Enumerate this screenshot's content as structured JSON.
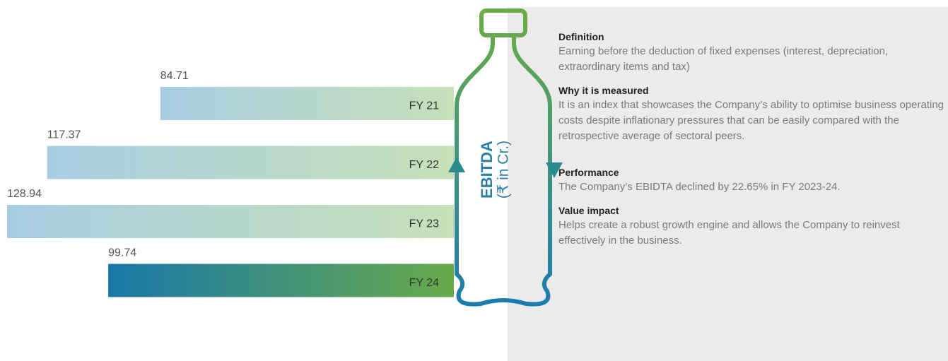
{
  "chart_data": {
    "type": "bar",
    "orientation": "horizontal",
    "title": "EBITDA",
    "subtitle": "(₹ in Cr.)",
    "categories": [
      "FY 21",
      "FY 22",
      "FY 23",
      "FY 24"
    ],
    "values": [
      84.71,
      117.37,
      128.94,
      99.74
    ],
    "bar_colors": [
      [
        "#a8cde2",
        "#c6e0b8"
      ],
      [
        "#a8cde2",
        "#c6e0b8"
      ],
      [
        "#a8cde2",
        "#c6e0b8"
      ],
      [
        "#1878aa",
        "#68aa4a"
      ]
    ]
  },
  "panel": {
    "sections": [
      {
        "heading": "Definition",
        "text": "Earning before the deduction of fixed expenses (interest, depreciation, extraordinary items and tax)"
      },
      {
        "heading": "Why it is measured",
        "text": "It is an index that showcases the Company’s ability to optimise business operating costs despite inflationary pressures that can be easily compared with the retrospective average of sectoral peers."
      },
      {
        "heading": "Performance",
        "text": "The Company’s EBIDTA declined by 22.65% in FY 2023-24."
      },
      {
        "heading": "Value impact",
        "text": "Helps create a robust growth engine and allows the Company to reinvest effectively in the business."
      }
    ]
  }
}
